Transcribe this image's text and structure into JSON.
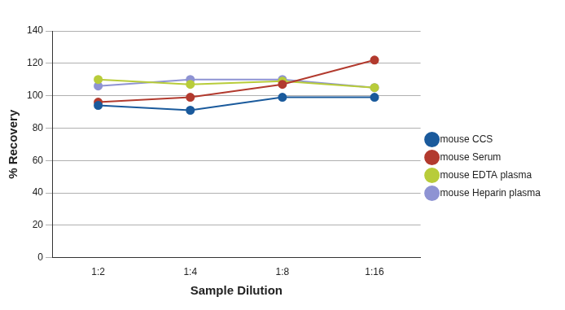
{
  "chart_data": {
    "type": "line",
    "x_label": "Sample Dilution",
    "y_label": "% Recovery",
    "categories": [
      "1:2",
      "1:4",
      "1:8",
      "1:16"
    ],
    "series": [
      {
        "name": "mouse CCS",
        "color": "#1a5a9c",
        "values": [
          94,
          91,
          99,
          99
        ],
        "marker": "circle"
      },
      {
        "name": "mouse Serum",
        "color": "#b23a2e",
        "values": [
          96,
          99,
          107,
          122
        ],
        "marker": "circle"
      },
      {
        "name": "mouse EDTA plasma",
        "color": "#b8cc3a",
        "values": [
          110,
          107,
          109,
          105
        ],
        "marker": "circle"
      },
      {
        "name": "mouse Heparin plasma",
        "color": "#8e93d3",
        "values": [
          106,
          110,
          110,
          105
        ],
        "marker": "circle"
      }
    ],
    "ylim": [
      0,
      140
    ],
    "yticks": [
      0,
      20,
      40,
      60,
      80,
      100,
      120,
      140
    ],
    "grid": true,
    "legend": "right"
  }
}
